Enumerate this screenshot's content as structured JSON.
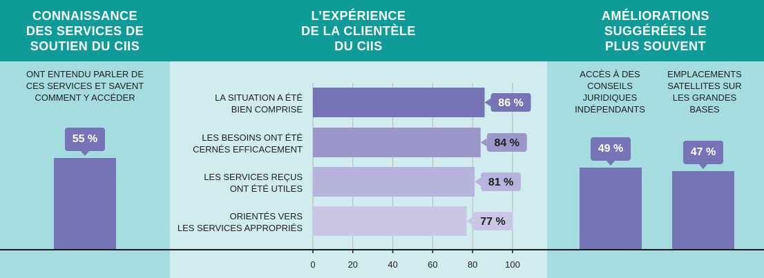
{
  "colors": {
    "header": "#0f9c99",
    "panel_side": "#a4dcdf",
    "panel_mid": "#d1ecee",
    "bar_dark": "#7673b6",
    "bar_1": "#7673b6",
    "bar_2": "#9b97ca",
    "bar_3": "#b6b3dc",
    "bar_4": "#cac7e6",
    "grid": "#b9b9b9",
    "axis": "#1a1a1a"
  },
  "left": {
    "header": "CONNAISSANCE\nDES SERVICES DE\nSOUTIEN DU CIIS",
    "subtitle": "ONT ENTENDU PARLER DE\nCES SERVICES ET SAVENT\nCOMMENT Y ACCÉDER",
    "value": 55,
    "value_label": "55 %"
  },
  "middle": {
    "header": "L’EXPÉRIENCE\nDE LA CLIENTÈLE\nDU CIIS"
  },
  "right": {
    "header": "AMÉLIORATIONS\nSUGGÉRÉES LE\nPLUS SOUVENT",
    "items": [
      {
        "label": "ACCÈS À DES\nCONSEILS\nJURIDIQUES\nINDÉPENDANTS",
        "value": 49,
        "value_label": "49 %"
      },
      {
        "label": "EMPLACEMENTS\nSATELLITES SUR\nLES GRANDES\nBASES",
        "value": 47,
        "value_label": "47 %"
      }
    ]
  },
  "chart_data": {
    "type": "bar",
    "orientation": "horizontal",
    "title": "L’EXPÉRIENCE DE LA CLIENTÈLE DU CIIS",
    "categories": [
      "LA SITUATION A ÉTÉ\nBIEN COMPRISE",
      "LES BESOINS ONT ÉTÉ\nCERNÉS EFFICACEMENT",
      "LES SERVICES REÇUS\nONT ÉTÉ UTILES",
      "ORIENTÉS VERS\nLES SERVICES APPROPRIÉS"
    ],
    "values": [
      86,
      84,
      81,
      77
    ],
    "value_labels": [
      "86 %",
      "84 %",
      "81 %",
      "77 %"
    ],
    "xlim": [
      0,
      100
    ],
    "xticks": [
      0,
      20,
      40,
      60,
      80,
      100
    ],
    "xtick_labels": [
      "0",
      "20",
      "40",
      "60",
      "80",
      "100"
    ],
    "grid": true
  }
}
